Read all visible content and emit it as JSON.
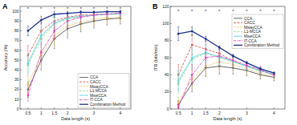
{
  "chart_data": [
    {
      "type": "line",
      "title": "A",
      "x_label": "Data length (s)",
      "y_label": "Accuracy (%)",
      "x": [
        0.5,
        1,
        1.5,
        2,
        2.5,
        3,
        3.5,
        4
      ],
      "xlim": [
        0.2,
        4.4
      ],
      "xticks": [
        0.5,
        1,
        1.5,
        2,
        3,
        4
      ],
      "ylim": [
        0,
        105
      ],
      "yticks": [
        0,
        10,
        20,
        30,
        40,
        50,
        60,
        70,
        80,
        90,
        100
      ],
      "grid": false,
      "legend": "lower right",
      "series": [
        {
          "name": "CCA",
          "color": "#555555",
          "line_style": "solid",
          "marker": "circle",
          "values": [
            20,
            50,
            72,
            82,
            87,
            90,
            92,
            93
          ],
          "errors": [
            8,
            10,
            10,
            9,
            8,
            7,
            6,
            6
          ]
        },
        {
          "name": "CACC",
          "color": "#d9534f",
          "line_style": "dashed",
          "marker": "circle",
          "values": [
            55,
            80,
            90,
            94,
            96,
            97,
            97,
            98
          ],
          "errors": [
            10,
            9,
            7,
            5,
            4,
            3,
            3,
            3
          ]
        },
        {
          "name": "MwayCCA",
          "color": "#e8b84a",
          "line_style": "dotted",
          "marker": "circle",
          "values": [
            25,
            55,
            75,
            85,
            89,
            92,
            93,
            94
          ],
          "errors": [
            9,
            10,
            10,
            8,
            7,
            6,
            6,
            5
          ]
        },
        {
          "name": "L1-MCCA",
          "color": "#8fd88f",
          "line_style": "dashed",
          "marker": "circle",
          "values": [
            45,
            72,
            87,
            92,
            94,
            96,
            97,
            97
          ],
          "errors": [
            10,
            9,
            7,
            6,
            5,
            4,
            3,
            3
          ]
        },
        {
          "name": "MsetCCA",
          "color": "#5fd3e6",
          "line_style": "solid",
          "marker": "circle",
          "values": [
            47,
            75,
            88,
            93,
            95,
            96,
            97,
            97.5
          ],
          "errors": [
            10,
            9,
            7,
            5,
            4,
            4,
            3,
            3
          ]
        },
        {
          "name": "IT-CCA",
          "color": "#e040c0",
          "line_style": "dashdot",
          "marker": "circle",
          "values": [
            14,
            58,
            80,
            90,
            94,
            96,
            97,
            98
          ],
          "errors": [
            6,
            10,
            9,
            7,
            5,
            4,
            3,
            3
          ]
        },
        {
          "name": "Combination Method",
          "color": "#1a2f8a",
          "line_style": "solid",
          "marker": "circle",
          "values": [
            80,
            91,
            97,
            98,
            99,
            99,
            99.5,
            99.5
          ],
          "errors": [
            5,
            4,
            3,
            2,
            1.5,
            1,
            1,
            1
          ]
        }
      ],
      "annotations": [
        {
          "x": 0.5,
          "y": 103,
          "text": "*"
        },
        {
          "x": 1,
          "y": 103,
          "text": "*"
        },
        {
          "x": 1.5,
          "y": 103,
          "text": "*"
        },
        {
          "x": 2,
          "y": 103,
          "text": "*"
        },
        {
          "x": 2.5,
          "y": 103,
          "text": "*"
        },
        {
          "x": 3,
          "y": 103,
          "text": "*"
        },
        {
          "x": 3.5,
          "y": 103,
          "text": "*"
        },
        {
          "x": 4,
          "y": 103,
          "text": "*"
        }
      ]
    },
    {
      "type": "line",
      "title": "B",
      "x_label": "Data length (s)",
      "y_label": "ITR (bits/min)",
      "x": [
        0.5,
        1,
        1.5,
        2,
        2.5,
        3,
        3.5,
        4
      ],
      "xlim": [
        0.2,
        4.4
      ],
      "xticks": [
        0.5,
        1,
        1.5,
        2,
        3,
        4
      ],
      "ylim": [
        0,
        120
      ],
      "yticks": [
        0,
        20,
        40,
        60,
        80,
        100,
        120
      ],
      "grid": false,
      "legend": "upper right",
      "series": [
        {
          "name": "CCA",
          "color": "#555555",
          "line_style": "solid",
          "marker": "circle",
          "values": [
            5,
            30,
            48,
            50,
            48,
            45,
            40,
            37
          ],
          "errors": [
            5,
            10,
            10,
            9,
            7,
            6,
            5,
            4
          ]
        },
        {
          "name": "CACC",
          "color": "#d9534f",
          "line_style": "dashed",
          "marker": "circle",
          "values": [
            40,
            75,
            70,
            65,
            56,
            50,
            45,
            40
          ],
          "errors": [
            12,
            12,
            10,
            8,
            6,
            5,
            4,
            3
          ]
        },
        {
          "name": "MwayCCA",
          "color": "#e8b84a",
          "line_style": "dotted",
          "marker": "circle",
          "values": [
            8,
            35,
            50,
            55,
            52,
            47,
            42,
            38
          ],
          "errors": [
            6,
            11,
            11,
            9,
            7,
            6,
            5,
            4
          ]
        },
        {
          "name": "L1-MCCA",
          "color": "#8fd88f",
          "line_style": "dashed",
          "marker": "circle",
          "values": [
            30,
            58,
            65,
            60,
            55,
            50,
            44,
            40
          ],
          "errors": [
            12,
            12,
            10,
            8,
            6,
            5,
            4,
            3
          ]
        },
        {
          "name": "MsetCCA",
          "color": "#5fd3e6",
          "line_style": "solid",
          "marker": "circle",
          "values": [
            33,
            60,
            66,
            61,
            56,
            50,
            45,
            40
          ],
          "errors": [
            12,
            12,
            10,
            8,
            6,
            5,
            4,
            3
          ]
        },
        {
          "name": "IT-CCA",
          "color": "#e040c0",
          "line_style": "dashdot",
          "marker": "circle",
          "values": [
            2,
            40,
            60,
            62,
            57,
            51,
            46,
            40
          ],
          "errors": [
            4,
            12,
            11,
            8,
            6,
            5,
            4,
            3
          ]
        },
        {
          "name": "Combination Method",
          "color": "#1a2f8a",
          "line_style": "solid",
          "marker": "circle",
          "values": [
            88,
            91,
            82,
            72,
            62,
            54,
            47,
            42
          ],
          "errors": [
            8,
            5,
            3,
            2,
            2,
            1,
            1,
            1
          ]
        }
      ],
      "annotations": [
        {
          "x": 0.5,
          "y": 115,
          "text": "*"
        },
        {
          "x": 1,
          "y": 115,
          "text": "*"
        },
        {
          "x": 1.5,
          "y": 115,
          "text": "*"
        },
        {
          "x": 2,
          "y": 115,
          "text": "*"
        },
        {
          "x": 2.5,
          "y": 115,
          "text": "*"
        },
        {
          "x": 3,
          "y": 115,
          "text": "*"
        },
        {
          "x": 3.5,
          "y": 115,
          "text": "*"
        },
        {
          "x": 4,
          "y": 115,
          "text": "*"
        }
      ]
    }
  ]
}
